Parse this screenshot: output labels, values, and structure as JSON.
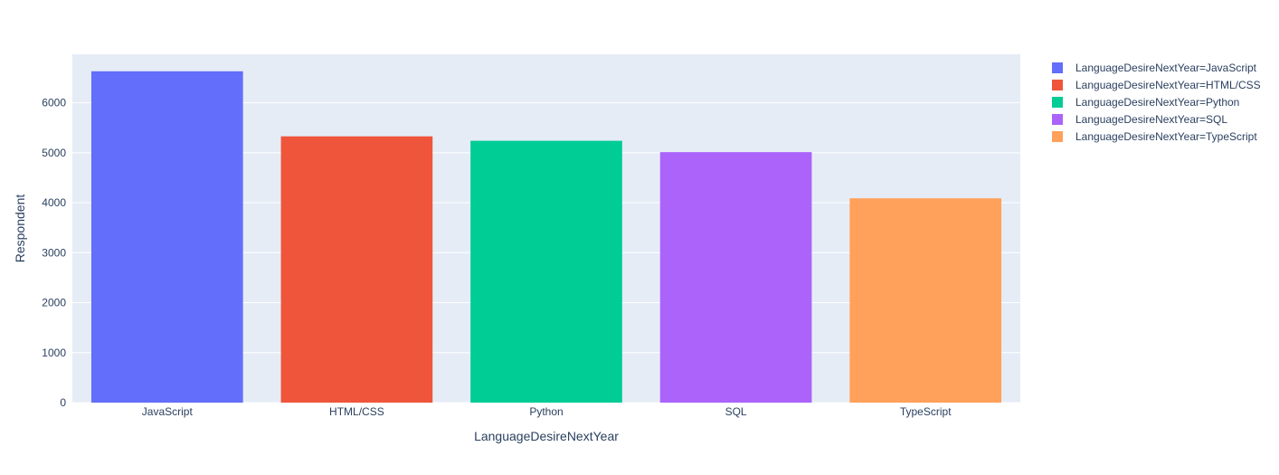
{
  "chart_data": {
    "type": "bar",
    "title": "",
    "xlabel": "LanguageDesireNextYear",
    "ylabel": "Respondent",
    "categories": [
      "JavaScript",
      "HTML/CSS",
      "Python",
      "SQL",
      "TypeScript"
    ],
    "series": [
      {
        "name": "LanguageDesireNextYear=JavaScript",
        "category": "JavaScript",
        "value": 6630,
        "color": "#636efa"
      },
      {
        "name": "LanguageDesireNextYear=HTML/CSS",
        "category": "HTML/CSS",
        "value": 5328,
        "color": "#ef553b"
      },
      {
        "name": "LanguageDesireNextYear=Python",
        "category": "Python",
        "value": 5239,
        "color": "#00cc96"
      },
      {
        "name": "LanguageDesireNextYear=SQL",
        "category": "SQL",
        "value": 5012,
        "color": "#ab63fa"
      },
      {
        "name": "LanguageDesireNextYear=TypeScript",
        "category": "TypeScript",
        "value": 4088,
        "color": "#ffa15a"
      }
    ],
    "ylim": [
      0,
      6970
    ],
    "yticks": [
      0,
      1000,
      2000,
      3000,
      4000,
      5000,
      6000
    ],
    "grid": true,
    "legend_position": "right",
    "plot_background": "#e5ecf6"
  }
}
